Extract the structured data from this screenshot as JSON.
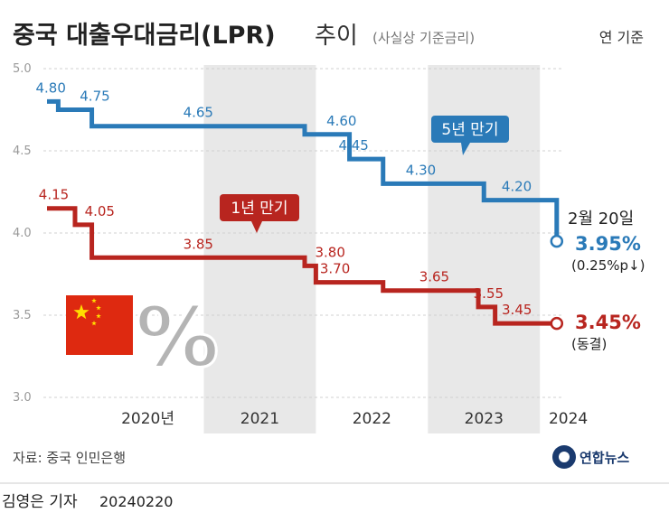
{
  "title": {
    "main": "중국 대출우대금리(LPR)",
    "trend": "추이",
    "note": "(사실상 기준금리)",
    "unit_note": "연 기준"
  },
  "colors": {
    "five_year": "#2a7ab8",
    "one_year": "#b8251f",
    "band": "#e8e8e8",
    "flag_red": "#de2910",
    "flag_star": "#ffde00"
  },
  "decoration": {
    "percent_symbol": "%"
  },
  "chart_data": {
    "type": "line",
    "step": true,
    "ylim": [
      3.0,
      5.0
    ],
    "yticks": [
      "5.0",
      "4.5",
      "4.0",
      "3.5",
      "3.0"
    ],
    "xlim": [
      2019.6,
      2024.2
    ],
    "year_labels": [
      "2020년",
      "2021",
      "2022",
      "2023",
      "2024"
    ],
    "year_bands": [
      2021,
      2023
    ],
    "series": [
      {
        "name": "5년 만기",
        "points": [
          [
            2019.6,
            4.8
          ],
          [
            2019.7,
            4.75
          ],
          [
            2020.0,
            4.65
          ],
          [
            2021.9,
            4.6
          ],
          [
            2022.3,
            4.45
          ],
          [
            2022.6,
            4.3
          ],
          [
            2023.5,
            4.2
          ],
          [
            2024.15,
            3.95
          ]
        ],
        "labels": [
          "4.80",
          "4.75",
          "4.65",
          "4.60",
          "4.45",
          "4.30",
          "4.20"
        ],
        "end_label": "3.95%",
        "end_note": "(0.25%p↓)"
      },
      {
        "name": "1년 만기",
        "points": [
          [
            2019.6,
            4.15
          ],
          [
            2019.85,
            4.05
          ],
          [
            2020.0,
            3.85
          ],
          [
            2021.9,
            3.8
          ],
          [
            2022.0,
            3.7
          ],
          [
            2022.6,
            3.65
          ],
          [
            2023.45,
            3.55
          ],
          [
            2023.6,
            3.45
          ],
          [
            2024.15,
            3.45
          ]
        ],
        "labels": [
          "4.15",
          "4.05",
          "3.85",
          "3.80",
          "3.70",
          "3.65",
          "3.55",
          "3.45"
        ],
        "end_label": "3.45%",
        "end_note": "(동결)"
      }
    ],
    "annotation": "2월 20일"
  },
  "source": "자료: 중국 인민은행",
  "logo": "연합뉴스",
  "credit": {
    "author": "김영은 기자",
    "date": "20240220"
  }
}
